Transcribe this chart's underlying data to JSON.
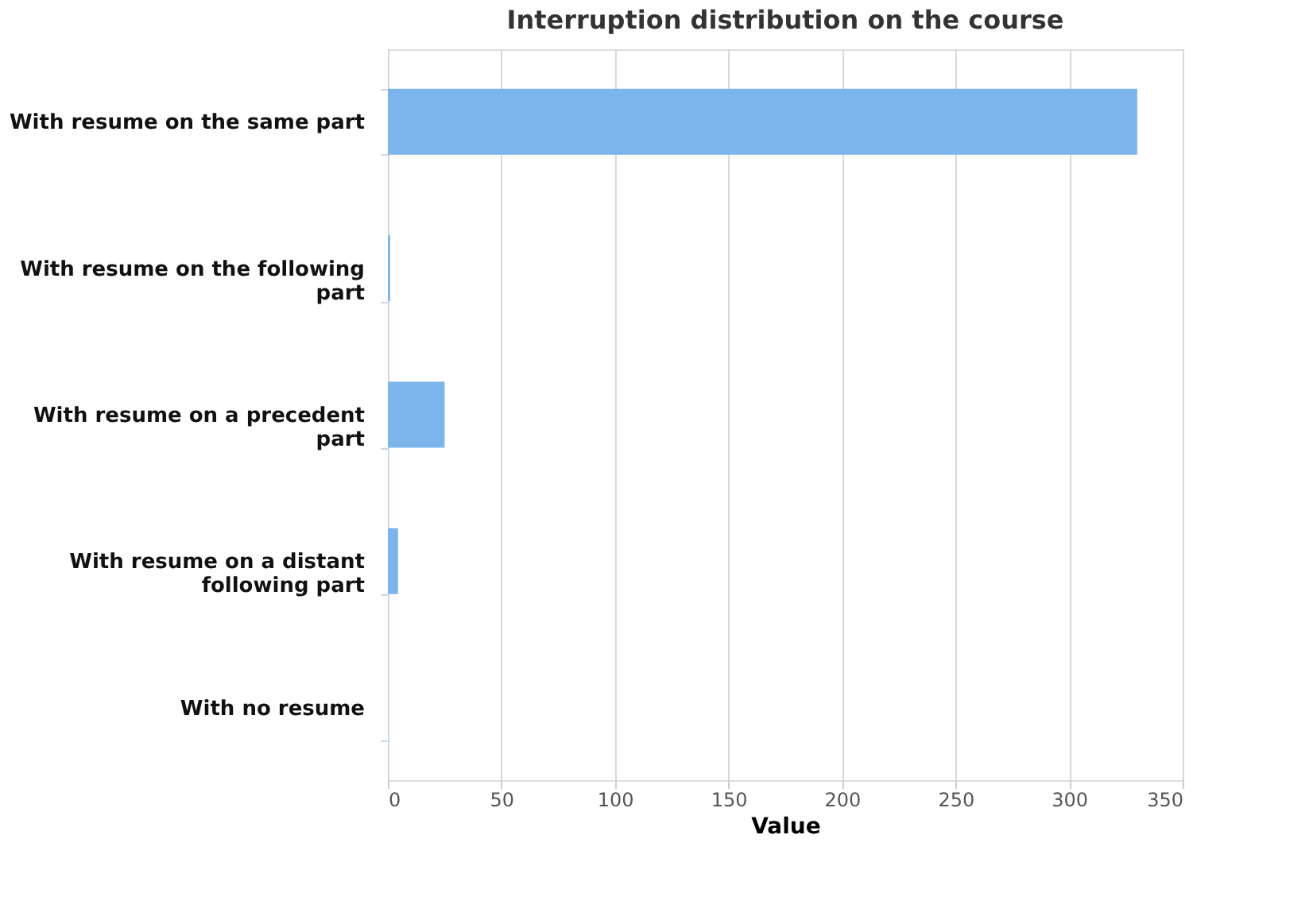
{
  "chart_data": {
    "type": "bar",
    "orientation": "horizontal",
    "title": "Interruption distribution on the course",
    "xlabel": "Value",
    "categories": [
      "With resume on the same part",
      "With resume on the following part",
      "With resume on a precedent part",
      "With resume on a distant following part",
      "With no resume"
    ],
    "values": [
      330,
      1,
      25,
      4.5,
      0
    ],
    "color": "#7cb5ec",
    "xlim": [
      0,
      350
    ],
    "xticks": [
      0,
      50,
      100,
      150,
      200,
      250,
      300,
      350
    ],
    "grid": "x"
  }
}
